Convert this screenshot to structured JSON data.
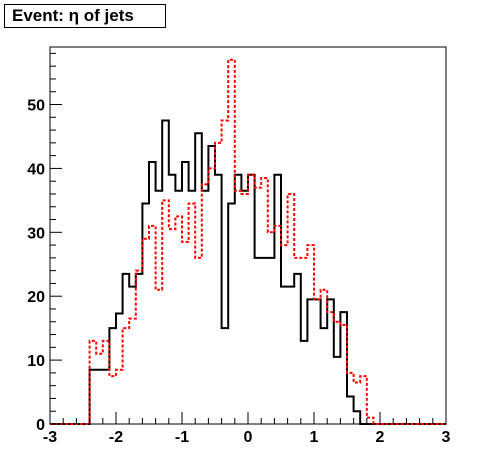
{
  "chart_data": {
    "type": "histogram",
    "title": "Event: η of jets",
    "xlabel": "",
    "ylabel": "",
    "xlim": [
      -3,
      3
    ],
    "ylim": [
      0,
      59
    ],
    "x_ticks": [
      "-3",
      "-2",
      "-1",
      "0",
      "1",
      "2",
      "3"
    ],
    "y_ticks": [
      "0",
      "10",
      "20",
      "30",
      "40",
      "50"
    ],
    "bin_edges": [
      -3.0,
      -2.9,
      -2.8,
      -2.7,
      -2.6,
      -2.5,
      -2.4,
      -2.3,
      -2.2,
      -2.1,
      -2.0,
      -1.9,
      -1.8,
      -1.7,
      -1.6,
      -1.5,
      -1.4,
      -1.3,
      -1.2,
      -1.1,
      -1.0,
      -0.9,
      -0.8,
      -0.7,
      -0.6,
      -0.5,
      -0.4,
      -0.3,
      -0.2,
      -0.1,
      0.0,
      0.1,
      0.2,
      0.3,
      0.4,
      0.5,
      0.6,
      0.7,
      0.8,
      0.9,
      1.0,
      1.1,
      1.2,
      1.3,
      1.4,
      1.5,
      1.6,
      1.7,
      1.8,
      1.9,
      2.0,
      2.1,
      2.2,
      2.3,
      2.4,
      2.5,
      2.6,
      2.7,
      2.8,
      2.9,
      3.0
    ],
    "series": [
      {
        "color": "#000000",
        "line_style": "solid",
        "values": [
          0,
          0,
          0,
          0,
          0,
          0,
          8.5,
          8.5,
          8.5,
          15,
          17.3,
          23.5,
          21.5,
          23.5,
          34.5,
          41,
          36.5,
          47.5,
          39,
          36.5,
          41,
          36.5,
          45.5,
          36.5,
          43.5,
          39,
          15,
          34.5,
          39,
          36.5,
          39,
          26,
          26,
          26,
          39,
          21.5,
          21.5,
          23.5,
          13,
          19.5,
          19.5,
          15,
          19.5,
          10.5,
          17.5,
          4.3,
          2,
          0,
          0,
          0,
          0,
          0,
          0,
          0,
          0,
          0,
          0,
          0,
          0,
          0
        ]
      },
      {
        "color": "#ff0000",
        "line_style": "dashed",
        "values": [
          0,
          0,
          0,
          0,
          0,
          0,
          13,
          11,
          13,
          7.5,
          8.5,
          15,
          16.5,
          24,
          29,
          31,
          21,
          35,
          30.5,
          32.5,
          28.5,
          34.5,
          26,
          37.5,
          40,
          44,
          47.5,
          57,
          36.5,
          36,
          39,
          37,
          38.5,
          30,
          31,
          28,
          36,
          26,
          26,
          28,
          19.5,
          21,
          17.5,
          16,
          15.5,
          8,
          6.5,
          7.5,
          1,
          0,
          0,
          0,
          0,
          0,
          0,
          0,
          0,
          0,
          0,
          0
        ]
      }
    ]
  }
}
